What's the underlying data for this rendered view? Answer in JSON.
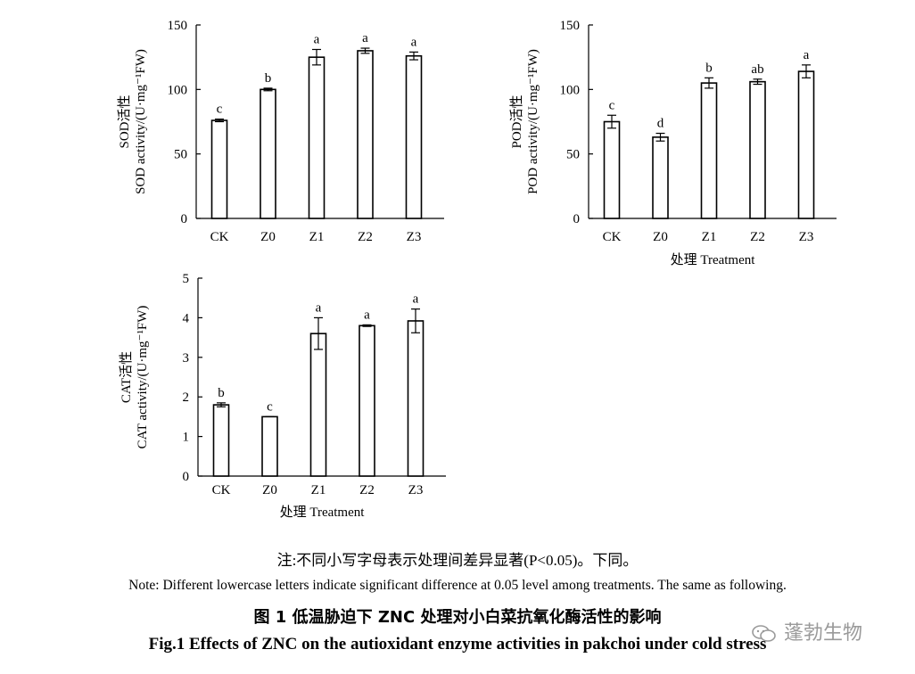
{
  "chart_data": [
    {
      "id": "sod",
      "type": "bar",
      "ylabel_cn": "SOD活性",
      "ylabel_en": "SOD activity/(U·mg⁻¹FW)",
      "xlabel": "",
      "categories": [
        "CK",
        "Z0",
        "Z1",
        "Z2",
        "Z3"
      ],
      "values": [
        76,
        100,
        125,
        130,
        126
      ],
      "errors": [
        1,
        1,
        6,
        2,
        3
      ],
      "letters": [
        "c",
        "b",
        "a",
        "a",
        "a"
      ],
      "ylim": [
        0,
        150
      ],
      "yticks": [
        0,
        50,
        100,
        150
      ]
    },
    {
      "id": "pod",
      "type": "bar",
      "ylabel_cn": "POD活性",
      "ylabel_en": "POD activity/(U·mg⁻¹FW)",
      "xlabel": "处理  Treatment",
      "categories": [
        "CK",
        "Z0",
        "Z1",
        "Z2",
        "Z3"
      ],
      "values": [
        75,
        63,
        105,
        106,
        114
      ],
      "errors": [
        5,
        3,
        4,
        2,
        5
      ],
      "letters": [
        "c",
        "d",
        "b",
        "ab",
        "a"
      ],
      "ylim": [
        0,
        150
      ],
      "yticks": [
        0,
        50,
        100,
        150
      ]
    },
    {
      "id": "cat",
      "type": "bar",
      "ylabel_cn": "CAT活性",
      "ylabel_en": "CAT activity/(U·mg⁻¹FW)",
      "xlabel": "处理  Treatment",
      "categories": [
        "CK",
        "Z0",
        "Z1",
        "Z2",
        "Z3"
      ],
      "values": [
        1.8,
        1.5,
        3.6,
        3.8,
        3.92
      ],
      "errors": [
        0.05,
        0.0,
        0.4,
        0.02,
        0.3
      ],
      "letters": [
        "b",
        "c",
        "a",
        "a",
        "a"
      ],
      "ylim": [
        0,
        5
      ],
      "yticks": [
        0,
        1,
        2,
        3,
        4,
        5
      ]
    }
  ],
  "caption": {
    "note_cn": "注:不同小写字母表示处理间差异显著(P<0.05)。下同。",
    "note_en": "Note: Different lowercase letters indicate significant difference at 0.05 level among treatments. The same as following.",
    "title_cn": "图 1   低温胁迫下 ZNC 处理对小白菜抗氧化酶活性的影响",
    "title_en": "Fig.1   Effects of ZNC on the autioxidant enzyme activities in pakchoi under cold stress"
  },
  "watermark": {
    "text": "蓬勃生物",
    "icon": "wechat-icon"
  }
}
